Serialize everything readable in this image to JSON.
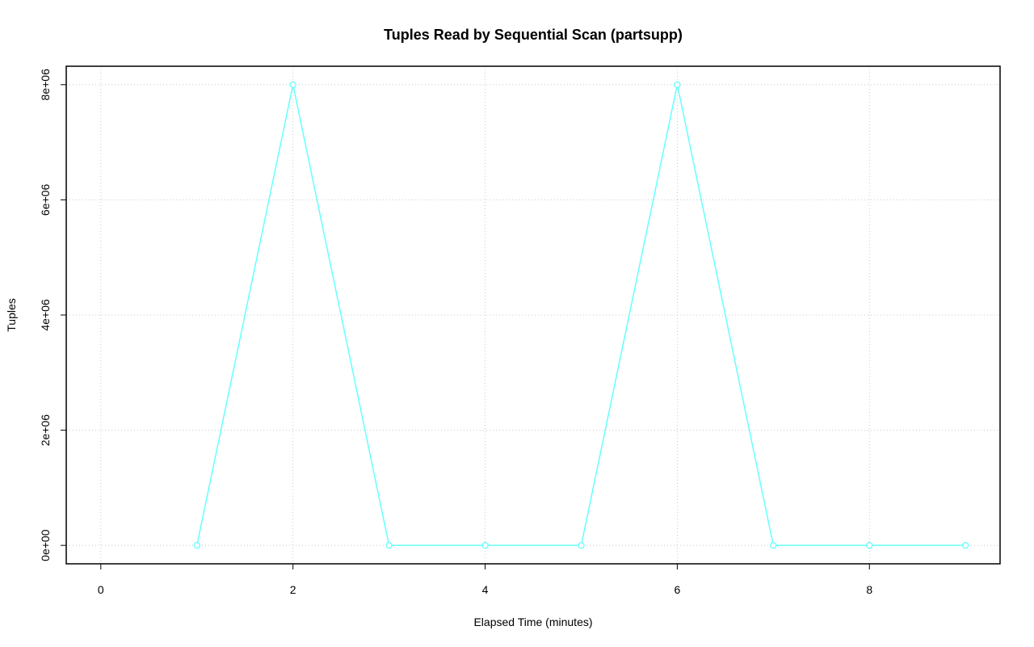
{
  "chart_data": {
    "type": "line",
    "title": "Tuples Read by Sequential Scan (partsupp)",
    "x_label": "Elapsed Time (minutes)",
    "y_label": "Tuples",
    "x": [
      1,
      2,
      3,
      4,
      5,
      6,
      7,
      8,
      9
    ],
    "series": [
      {
        "name": "partsupp",
        "color": "#66ffff",
        "values": [
          0,
          8000000,
          0,
          0,
          0,
          8000000,
          0,
          0,
          0
        ]
      }
    ],
    "xlim": [
      -0.36,
      9.36
    ],
    "xticks": [
      0,
      2,
      4,
      6,
      8
    ],
    "ylim": [
      -320000,
      8320000
    ],
    "yticks": [
      {
        "value": 0,
        "label": "0e+00"
      },
      {
        "value": 2000000,
        "label": "2e+06"
      },
      {
        "value": 4000000,
        "label": "4e+06"
      },
      {
        "value": 6000000,
        "label": "6e+06"
      },
      {
        "value": 8000000,
        "label": "8e+06"
      }
    ],
    "grid": true
  }
}
